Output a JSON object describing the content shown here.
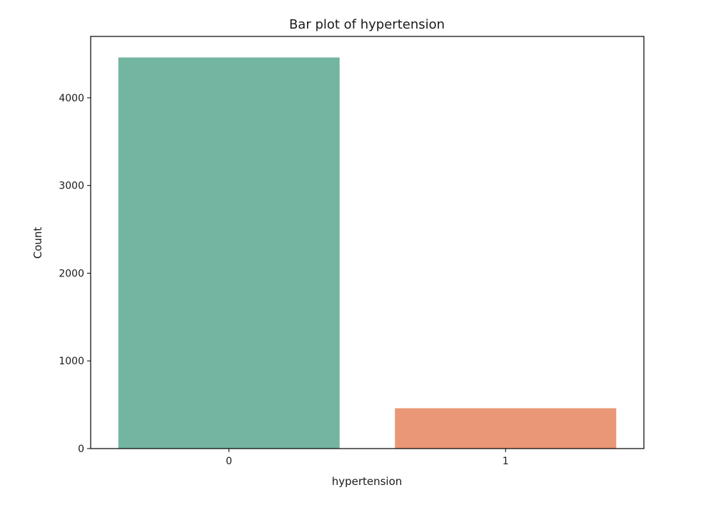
{
  "chart_data": {
    "type": "bar",
    "title": "Bar plot of hypertension",
    "xlabel": "hypertension",
    "ylabel": "Count",
    "categories": [
      "0",
      "1"
    ],
    "values": [
      4460,
      460
    ],
    "colors": [
      "#74b5a1",
      "#e99776"
    ],
    "ylim": [
      0,
      4700
    ],
    "yticks": [
      0,
      1000,
      2000,
      3000,
      4000
    ],
    "grid": false
  }
}
